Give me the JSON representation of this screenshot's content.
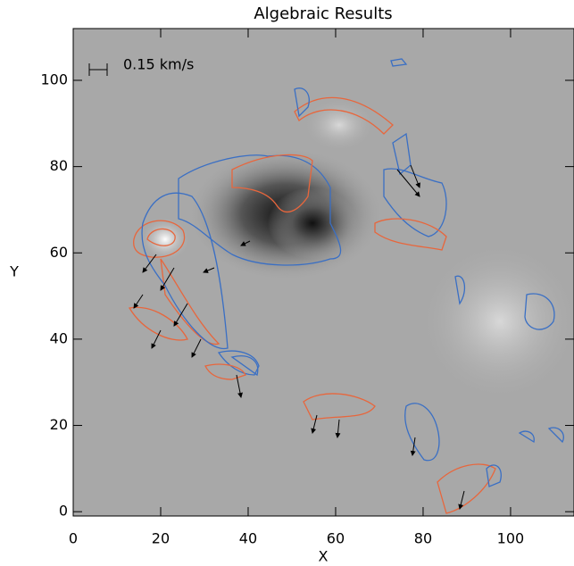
{
  "chart_data": {
    "type": "image",
    "title": "Algebraic Results",
    "xlabel": "X",
    "ylabel": "Y",
    "xlim": [
      0,
      114.5
    ],
    "ylim": [
      -1,
      112
    ],
    "xticks": [
      0,
      20,
      40,
      60,
      80,
      100
    ],
    "yticks": [
      0,
      20,
      40,
      60,
      80,
      100
    ],
    "scale_label": "0.15 km/s"
  }
}
